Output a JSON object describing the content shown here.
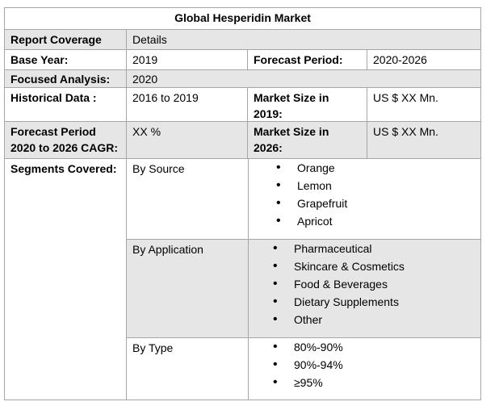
{
  "title": "Global Hesperidin  Market",
  "header": {
    "label": "Report Coverage",
    "value": "Details"
  },
  "base_year": {
    "label": "Base Year:",
    "value": "2019",
    "forecast_label": "Forecast Period:",
    "forecast_value": "2020-2026"
  },
  "focused": {
    "label": "Focused Analysis:",
    "value": "2020"
  },
  "historical": {
    "label": "Historical Data :",
    "value": "2016 to 2019",
    "size_label": "Market Size in 2019:",
    "size_value": "US $ XX Mn."
  },
  "cagr": {
    "label": "Forecast Period 2020 to 2026 CAGR:",
    "value": "XX %",
    "size_label": "Market Size in 2026:",
    "size_value": "US $ XX Mn."
  },
  "segments": {
    "label": "Segments Covered:",
    "groups": [
      {
        "name": "By Source",
        "items": [
          "Orange",
          "Lemon",
          "Grapefruit",
          "Apricot"
        ]
      },
      {
        "name": "By Application",
        "items": [
          "Pharmaceutical",
          "Skincare & Cosmetics",
          "Food & Beverages",
          "Dietary Supplements",
          "Other"
        ]
      },
      {
        "name": "By Type",
        "items": [
          "80%-90%",
          "90%-94%",
          "≥95%"
        ]
      }
    ]
  }
}
